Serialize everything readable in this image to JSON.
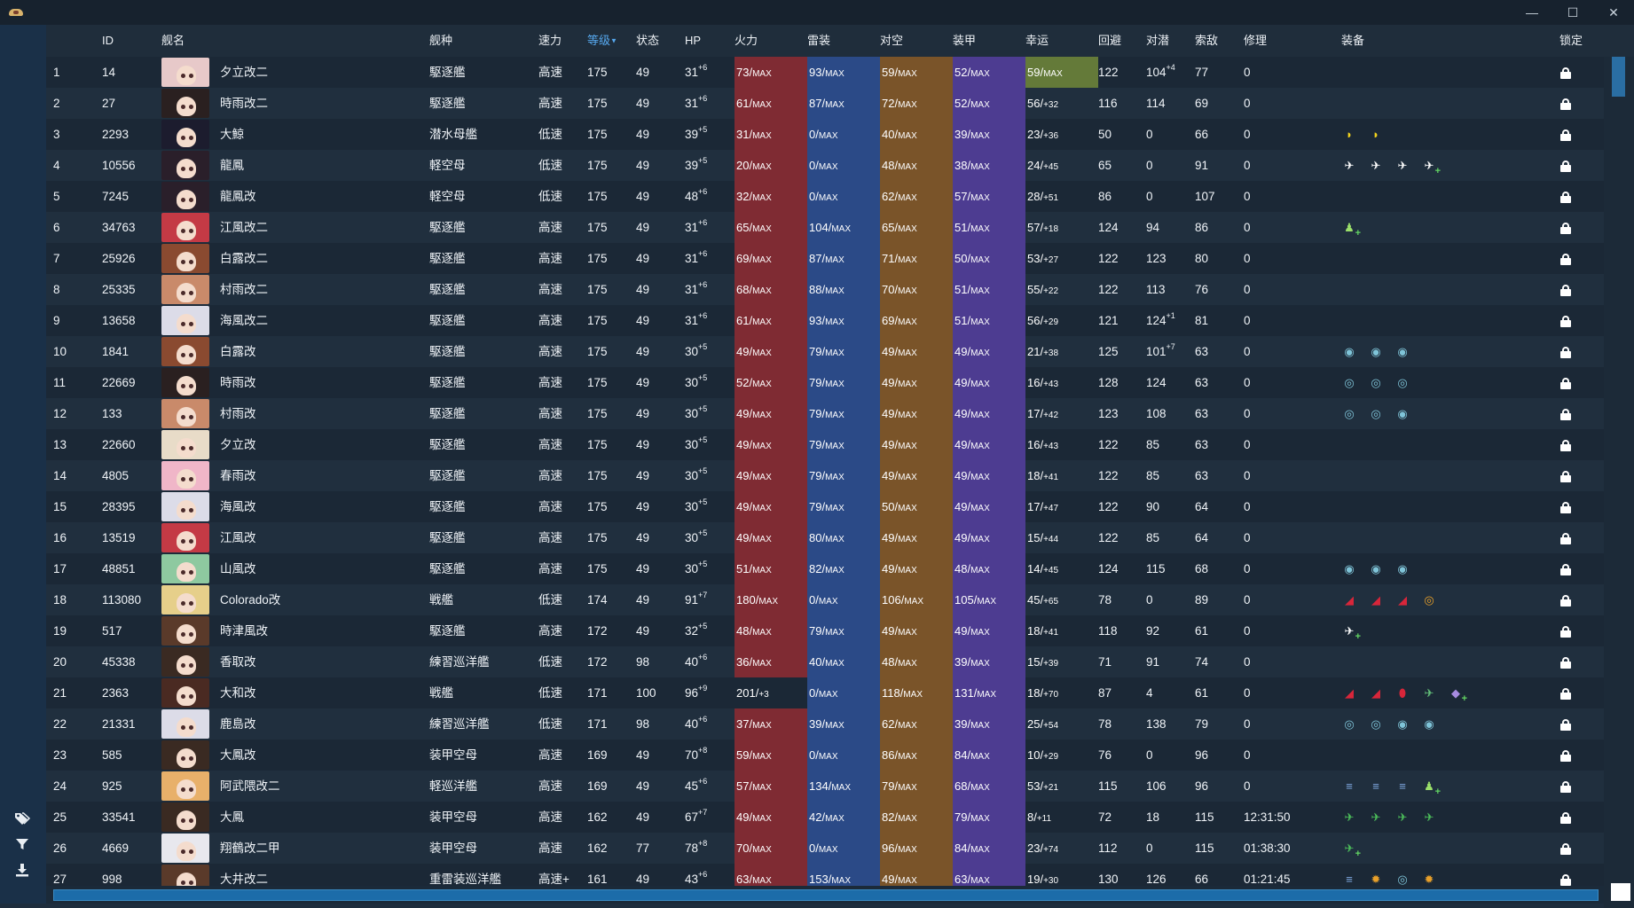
{
  "window": {
    "minimize": "—",
    "maximize": "☐",
    "close": "✕"
  },
  "sidebar": {
    "tags_icon": "tag-icon",
    "filter_icon": "filter-icon",
    "export_icon": "download-icon"
  },
  "columns": {
    "index": "",
    "id": "ID",
    "name": "舰名",
    "type": "舰种",
    "speed": "速力",
    "level": "等级",
    "level_sort": "▼",
    "cond": "状态",
    "hp": "HP",
    "firepower": "火力",
    "torpedo": "雷装",
    "aa": "对空",
    "armor": "装甲",
    "luck": "幸运",
    "evasion": "回避",
    "asw": "对潜",
    "los": "索敌",
    "repair": "修理",
    "equipment": "装备",
    "lock": "锁定"
  },
  "stat_colors": {
    "firepower": "#7f2b33",
    "torpedo": "#2b4a87",
    "aa": "#7a5429",
    "armor": "#4d3c91",
    "luck_max": "#647a39"
  },
  "rows": [
    {
      "idx": "1",
      "id": "14",
      "name": "夕立改二",
      "type": "駆逐艦",
      "speed": "高速",
      "level": "175",
      "cond": "49",
      "hp": "31",
      "hp_sup": "+6",
      "fp": "73/",
      "fp_s": "MAX",
      "tp": "93/",
      "tp_s": "MAX",
      "aa": "59/",
      "aa_s": "MAX",
      "ar": "52/",
      "ar_s": "MAX",
      "lk": "59/",
      "lk_s": "MAX",
      "lk_max": true,
      "ev": "122",
      "asw": "104",
      "asw_sup": "+4",
      "los": "77",
      "rep": "0",
      "hair": "#e7c9c9",
      "equip": []
    },
    {
      "idx": "2",
      "id": "27",
      "name": "時雨改二",
      "type": "駆逐艦",
      "speed": "高速",
      "level": "175",
      "cond": "49",
      "hp": "31",
      "hp_sup": "+6",
      "fp": "61/",
      "fp_s": "MAX",
      "tp": "87/",
      "tp_s": "MAX",
      "aa": "72/",
      "aa_s": "MAX",
      "ar": "52/",
      "ar_s": "MAX",
      "lk": "56/",
      "lk_s": "+32",
      "ev": "116",
      "asw": "114",
      "los": "69",
      "rep": "0",
      "hair": "#2a2020",
      "equip": []
    },
    {
      "idx": "3",
      "id": "2293",
      "name": "大鯨",
      "type": "潜水母艦",
      "speed": "低速",
      "level": "175",
      "cond": "49",
      "hp": "39",
      "hp_sup": "+5",
      "fp": "31/",
      "fp_s": "MAX",
      "tp": "0/",
      "tp_s": "MAX",
      "aa": "40/",
      "aa_s": "MAX",
      "ar": "39/",
      "ar_s": "MAX",
      "lk": "23/",
      "lk_s": "+36",
      "ev": "50",
      "asw": "0",
      "los": "66",
      "rep": "0",
      "hair": "#1c1c2e",
      "equip": [
        {
          "n": "searchlight-icon",
          "g": "◗",
          "c": "#f2d21d"
        },
        {
          "n": "searchlight-icon",
          "g": "◗",
          "c": "#f2d21d"
        }
      ]
    },
    {
      "idx": "4",
      "id": "10556",
      "name": "龍鳳",
      "type": "軽空母",
      "speed": "低速",
      "level": "175",
      "cond": "49",
      "hp": "39",
      "hp_sup": "+5",
      "fp": "20/",
      "fp_s": "MAX",
      "tp": "0/",
      "tp_s": "MAX",
      "aa": "48/",
      "aa_s": "MAX",
      "ar": "38/",
      "ar_s": "MAX",
      "lk": "24/",
      "lk_s": "+45",
      "ev": "65",
      "asw": "0",
      "los": "91",
      "rep": "0",
      "hair": "#2a1f2a",
      "equip": [
        {
          "n": "fighter-plane-icon",
          "g": "✈",
          "c": "#ffffff"
        },
        {
          "n": "fighter-plane-icon",
          "g": "✈",
          "c": "#ffffff"
        },
        {
          "n": "fighter-plane-icon",
          "g": "✈",
          "c": "#ffffff"
        },
        {
          "n": "fighter-plane-icon",
          "g": "✈",
          "c": "#ffffff",
          "p": true
        }
      ]
    },
    {
      "idx": "5",
      "id": "7245",
      "name": "龍鳳改",
      "type": "軽空母",
      "speed": "低速",
      "level": "175",
      "cond": "49",
      "hp": "48",
      "hp_sup": "+6",
      "fp": "32/",
      "fp_s": "MAX",
      "tp": "0/",
      "tp_s": "MAX",
      "aa": "62/",
      "aa_s": "MAX",
      "ar": "57/",
      "ar_s": "MAX",
      "lk": "28/",
      "lk_s": "+51",
      "ev": "86",
      "asw": "0",
      "los": "107",
      "rep": "0",
      "hair": "#2a1f2a",
      "equip": []
    },
    {
      "idx": "6",
      "id": "34763",
      "name": "江風改二",
      "type": "駆逐艦",
      "speed": "高速",
      "level": "175",
      "cond": "49",
      "hp": "31",
      "hp_sup": "+6",
      "fp": "65/",
      "fp_s": "MAX",
      "tp": "104/",
      "tp_s": "MAX",
      "aa": "65/",
      "aa_s": "MAX",
      "ar": "51/",
      "ar_s": "MAX",
      "lk": "57/",
      "lk_s": "+18",
      "ev": "124",
      "asw": "94",
      "los": "86",
      "rep": "0",
      "hair": "#c43a45",
      "equip": [
        {
          "n": "lookout-personnel-icon",
          "g": "♟",
          "c": "#9be06a",
          "p": true
        }
      ]
    },
    {
      "idx": "7",
      "id": "25926",
      "name": "白露改二",
      "type": "駆逐艦",
      "speed": "高速",
      "level": "175",
      "cond": "49",
      "hp": "31",
      "hp_sup": "+6",
      "fp": "69/",
      "fp_s": "MAX",
      "tp": "87/",
      "tp_s": "MAX",
      "aa": "71/",
      "aa_s": "MAX",
      "ar": "50/",
      "ar_s": "MAX",
      "lk": "53/",
      "lk_s": "+27",
      "ev": "122",
      "asw": "123",
      "los": "80",
      "rep": "0",
      "hair": "#8a4a30",
      "equip": []
    },
    {
      "idx": "8",
      "id": "25335",
      "name": "村雨改二",
      "type": "駆逐艦",
      "speed": "高速",
      "level": "175",
      "cond": "49",
      "hp": "31",
      "hp_sup": "+6",
      "fp": "68/",
      "fp_s": "MAX",
      "tp": "88/",
      "tp_s": "MAX",
      "aa": "70/",
      "aa_s": "MAX",
      "ar": "51/",
      "ar_s": "MAX",
      "lk": "55/",
      "lk_s": "+22",
      "ev": "122",
      "asw": "113",
      "los": "76",
      "rep": "0",
      "hair": "#c98a6a",
      "equip": []
    },
    {
      "idx": "9",
      "id": "13658",
      "name": "海風改二",
      "type": "駆逐艦",
      "speed": "高速",
      "level": "175",
      "cond": "49",
      "hp": "31",
      "hp_sup": "+6",
      "fp": "61/",
      "fp_s": "MAX",
      "tp": "93/",
      "tp_s": "MAX",
      "aa": "69/",
      "aa_s": "MAX",
      "ar": "51/",
      "ar_s": "MAX",
      "lk": "56/",
      "lk_s": "+29",
      "ev": "121",
      "asw": "124",
      "asw_sup": "+1",
      "los": "81",
      "rep": "0",
      "hair": "#dcdce8",
      "equip": []
    },
    {
      "idx": "10",
      "id": "1841",
      "name": "白露改",
      "type": "駆逐艦",
      "speed": "高速",
      "level": "175",
      "cond": "49",
      "hp": "30",
      "hp_sup": "+5",
      "fp": "49/",
      "fp_s": "MAX",
      "tp": "79/",
      "tp_s": "MAX",
      "aa": "49/",
      "aa_s": "MAX",
      "ar": "49/",
      "ar_s": "MAX",
      "lk": "21/",
      "lk_s": "+38",
      "ev": "125",
      "asw": "101",
      "asw_sup": "+7",
      "los": "63",
      "rep": "0",
      "hair": "#8a4a30",
      "equip": [
        {
          "n": "depth-charge-icon",
          "g": "◉",
          "c": "#7fc4d8"
        },
        {
          "n": "depth-charge-icon",
          "g": "◉",
          "c": "#7fc4d8"
        },
        {
          "n": "depth-charge-icon",
          "g": "◉",
          "c": "#7fc4d8"
        }
      ]
    },
    {
      "idx": "11",
      "id": "22669",
      "name": "時雨改",
      "type": "駆逐艦",
      "speed": "高速",
      "level": "175",
      "cond": "49",
      "hp": "30",
      "hp_sup": "+5",
      "fp": "52/",
      "fp_s": "MAX",
      "tp": "79/",
      "tp_s": "MAX",
      "aa": "49/",
      "aa_s": "MAX",
      "ar": "49/",
      "ar_s": "MAX",
      "lk": "16/",
      "lk_s": "+43",
      "ev": "128",
      "asw": "124",
      "los": "63",
      "rep": "0",
      "hair": "#2a2020",
      "equip": [
        {
          "n": "sonar-icon",
          "g": "◎",
          "c": "#7fc4d8"
        },
        {
          "n": "sonar-icon",
          "g": "◎",
          "c": "#7fc4d8"
        },
        {
          "n": "sonar-icon",
          "g": "◎",
          "c": "#7fc4d8"
        }
      ]
    },
    {
      "idx": "12",
      "id": "133",
      "name": "村雨改",
      "type": "駆逐艦",
      "speed": "高速",
      "level": "175",
      "cond": "49",
      "hp": "30",
      "hp_sup": "+5",
      "fp": "49/",
      "fp_s": "MAX",
      "tp": "79/",
      "tp_s": "MAX",
      "aa": "49/",
      "aa_s": "MAX",
      "ar": "49/",
      "ar_s": "MAX",
      "lk": "17/",
      "lk_s": "+42",
      "ev": "123",
      "asw": "108",
      "los": "63",
      "rep": "0",
      "hair": "#c98a6a",
      "equip": [
        {
          "n": "sonar-icon",
          "g": "◎",
          "c": "#7fc4d8"
        },
        {
          "n": "sonar-icon",
          "g": "◎",
          "c": "#7fc4d8"
        },
        {
          "n": "depth-charge-icon",
          "g": "◉",
          "c": "#7fc4d8"
        }
      ]
    },
    {
      "idx": "13",
      "id": "22660",
      "name": "夕立改",
      "type": "駆逐艦",
      "speed": "高速",
      "level": "175",
      "cond": "49",
      "hp": "30",
      "hp_sup": "+5",
      "fp": "49/",
      "fp_s": "MAX",
      "tp": "79/",
      "tp_s": "MAX",
      "aa": "49/",
      "aa_s": "MAX",
      "ar": "49/",
      "ar_s": "MAX",
      "lk": "16/",
      "lk_s": "+43",
      "ev": "122",
      "asw": "85",
      "los": "63",
      "rep": "0",
      "hair": "#e8dcc8",
      "equip": []
    },
    {
      "idx": "14",
      "id": "4805",
      "name": "春雨改",
      "type": "駆逐艦",
      "speed": "高速",
      "level": "175",
      "cond": "49",
      "hp": "30",
      "hp_sup": "+5",
      "fp": "49/",
      "fp_s": "MAX",
      "tp": "79/",
      "tp_s": "MAX",
      "aa": "49/",
      "aa_s": "MAX",
      "ar": "49/",
      "ar_s": "MAX",
      "lk": "18/",
      "lk_s": "+41",
      "ev": "122",
      "asw": "85",
      "los": "63",
      "rep": "0",
      "hair": "#f0b6c8",
      "equip": []
    },
    {
      "idx": "15",
      "id": "28395",
      "name": "海風改",
      "type": "駆逐艦",
      "speed": "高速",
      "level": "175",
      "cond": "49",
      "hp": "30",
      "hp_sup": "+5",
      "fp": "49/",
      "fp_s": "MAX",
      "tp": "79/",
      "tp_s": "MAX",
      "aa": "50/",
      "aa_s": "MAX",
      "ar": "49/",
      "ar_s": "MAX",
      "lk": "17/",
      "lk_s": "+47",
      "ev": "122",
      "asw": "90",
      "los": "64",
      "rep": "0",
      "hair": "#dcdce8",
      "equip": []
    },
    {
      "idx": "16",
      "id": "13519",
      "name": "江風改",
      "type": "駆逐艦",
      "speed": "高速",
      "level": "175",
      "cond": "49",
      "hp": "30",
      "hp_sup": "+5",
      "fp": "49/",
      "fp_s": "MAX",
      "tp": "80/",
      "tp_s": "MAX",
      "aa": "49/",
      "aa_s": "MAX",
      "ar": "49/",
      "ar_s": "MAX",
      "lk": "15/",
      "lk_s": "+44",
      "ev": "122",
      "asw": "85",
      "los": "64",
      "rep": "0",
      "hair": "#c43a45",
      "equip": []
    },
    {
      "idx": "17",
      "id": "48851",
      "name": "山風改",
      "type": "駆逐艦",
      "speed": "高速",
      "level": "175",
      "cond": "49",
      "hp": "30",
      "hp_sup": "+5",
      "fp": "51/",
      "fp_s": "MAX",
      "tp": "82/",
      "tp_s": "MAX",
      "aa": "49/",
      "aa_s": "MAX",
      "ar": "48/",
      "ar_s": "MAX",
      "lk": "14/",
      "lk_s": "+45",
      "ev": "124",
      "asw": "115",
      "los": "68",
      "rep": "0",
      "hair": "#8ec9a0",
      "equip": [
        {
          "n": "depth-charge-icon",
          "g": "◉",
          "c": "#7fc4d8"
        },
        {
          "n": "depth-charge-icon",
          "g": "◉",
          "c": "#7fc4d8"
        },
        {
          "n": "depth-charge-icon",
          "g": "◉",
          "c": "#7fc4d8"
        }
      ]
    },
    {
      "idx": "18",
      "id": "113080",
      "name": "Colorado改",
      "type": "戦艦",
      "speed": "低速",
      "level": "174",
      "cond": "49",
      "hp": "91",
      "hp_sup": "+7",
      "fp": "180/",
      "fp_s": "MAX",
      "tp": "0/",
      "tp_s": "MAX",
      "aa": "106/",
      "aa_s": "MAX",
      "ar": "105/",
      "ar_s": "MAX",
      "lk": "45/",
      "lk_s": "+65",
      "ev": "78",
      "asw": "0",
      "los": "89",
      "rep": "0",
      "hair": "#e6cf8a",
      "equip": [
        {
          "n": "large-gun-icon",
          "g": "◢",
          "c": "#d8263a"
        },
        {
          "n": "large-gun-icon",
          "g": "◢",
          "c": "#d8263a"
        },
        {
          "n": "large-gun-icon",
          "g": "◢",
          "c": "#d8263a"
        },
        {
          "n": "radar-icon",
          "g": "◎",
          "c": "#e8a02a"
        }
      ]
    },
    {
      "idx": "19",
      "id": "517",
      "name": "時津風改",
      "type": "駆逐艦",
      "speed": "高速",
      "level": "172",
      "cond": "49",
      "hp": "32",
      "hp_sup": "+5",
      "fp": "48/",
      "fp_s": "MAX",
      "tp": "79/",
      "tp_s": "MAX",
      "aa": "49/",
      "aa_s": "MAX",
      "ar": "49/",
      "ar_s": "MAX",
      "lk": "18/",
      "lk_s": "+41",
      "ev": "118",
      "asw": "92",
      "los": "61",
      "rep": "0",
      "hair": "#5a3a2a",
      "equip": [
        {
          "n": "fighter-plane-icon",
          "g": "✈",
          "c": "#ffffff",
          "p": true
        }
      ]
    },
    {
      "idx": "20",
      "id": "45338",
      "name": "香取改",
      "type": "練習巡洋艦",
      "speed": "低速",
      "level": "172",
      "cond": "98",
      "hp": "40",
      "hp_sup": "+6",
      "fp": "36/",
      "fp_s": "MAX",
      "tp": "40/",
      "tp_s": "MAX",
      "aa": "48/",
      "aa_s": "MAX",
      "ar": "39/",
      "ar_s": "MAX",
      "lk": "15/",
      "lk_s": "+39",
      "ev": "71",
      "asw": "91",
      "los": "74",
      "rep": "0",
      "hair": "#3a2a22",
      "equip": []
    },
    {
      "idx": "21",
      "id": "2363",
      "name": "大和改",
      "type": "戦艦",
      "speed": "低速",
      "level": "171",
      "cond": "100",
      "hp": "96",
      "hp_sup": "+9",
      "fp": "201/",
      "fp_s": "+3",
      "fp_notmax": true,
      "tp": "0/",
      "tp_s": "MAX",
      "aa": "118/",
      "aa_s": "MAX",
      "ar": "131/",
      "ar_s": "MAX",
      "lk": "18/",
      "lk_s": "+70",
      "ev": "87",
      "asw": "4",
      "los": "61",
      "rep": "0",
      "hair": "#4a2a22",
      "equip": [
        {
          "n": "large-gun-icon",
          "g": "◢",
          "c": "#d8263a"
        },
        {
          "n": "large-gun-icon",
          "g": "◢",
          "c": "#d8263a"
        },
        {
          "n": "ap-shell-icon",
          "g": "⬮",
          "c": "#d8263a"
        },
        {
          "n": "seaplane-icon",
          "g": "✈",
          "c": "#63c07a"
        },
        {
          "n": "medal-icon",
          "g": "◆",
          "c": "#a78be0",
          "p": true
        }
      ]
    },
    {
      "idx": "22",
      "id": "21331",
      "name": "鹿島改",
      "type": "練習巡洋艦",
      "speed": "低速",
      "level": "171",
      "cond": "98",
      "hp": "40",
      "hp_sup": "+6",
      "fp": "37/",
      "fp_s": "MAX",
      "tp": "39/",
      "tp_s": "MAX",
      "aa": "62/",
      "aa_s": "MAX",
      "ar": "39/",
      "ar_s": "MAX",
      "lk": "25/",
      "lk_s": "+54",
      "ev": "78",
      "asw": "138",
      "los": "79",
      "rep": "0",
      "hair": "#dcdce8",
      "equip": [
        {
          "n": "sonar-icon",
          "g": "◎",
          "c": "#7fc4d8"
        },
        {
          "n": "sonar-icon",
          "g": "◎",
          "c": "#7fc4d8"
        },
        {
          "n": "depth-charge-icon",
          "g": "◉",
          "c": "#7fc4d8"
        },
        {
          "n": "depth-charge-icon",
          "g": "◉",
          "c": "#7fc4d8"
        }
      ]
    },
    {
      "idx": "23",
      "id": "585",
      "name": "大鳳改",
      "type": "装甲空母",
      "speed": "高速",
      "level": "169",
      "cond": "49",
      "hp": "70",
      "hp_sup": "+8",
      "fp": "59/",
      "fp_s": "MAX",
      "tp": "0/",
      "tp_s": "MAX",
      "aa": "86/",
      "aa_s": "MAX",
      "ar": "84/",
      "ar_s": "MAX",
      "lk": "10/",
      "lk_s": "+29",
      "ev": "76",
      "asw": "0",
      "los": "96",
      "rep": "0",
      "hair": "#3a2a22",
      "equip": []
    },
    {
      "idx": "24",
      "id": "925",
      "name": "阿武隈改二",
      "type": "軽巡洋艦",
      "speed": "高速",
      "level": "169",
      "cond": "49",
      "hp": "45",
      "hp_sup": "+6",
      "fp": "57/",
      "fp_s": "MAX",
      "tp": "134/",
      "tp_s": "MAX",
      "aa": "79/",
      "aa_s": "MAX",
      "ar": "68/",
      "ar_s": "MAX",
      "lk": "53/",
      "lk_s": "+21",
      "ev": "115",
      "asw": "106",
      "los": "96",
      "rep": "0",
      "hair": "#e8b06a",
      "equip": [
        {
          "n": "torpedo-icon",
          "g": "≡",
          "c": "#7fa8e0"
        },
        {
          "n": "torpedo-icon",
          "g": "≡",
          "c": "#7fa8e0"
        },
        {
          "n": "torpedo-icon",
          "g": "≡",
          "c": "#7fa8e0"
        },
        {
          "n": "lookout-personnel-icon",
          "g": "♟",
          "c": "#9be06a",
          "p": true
        }
      ]
    },
    {
      "idx": "25",
      "id": "33541",
      "name": "大鳳",
      "type": "装甲空母",
      "speed": "高速",
      "level": "162",
      "cond": "49",
      "hp": "67",
      "hp_sup": "+7",
      "fp": "49/",
      "fp_s": "MAX",
      "tp": "42/",
      "tp_s": "MAX",
      "aa": "82/",
      "aa_s": "MAX",
      "ar": "79/",
      "ar_s": "MAX",
      "lk": "8/",
      "lk_s": "+11",
      "ev": "72",
      "asw": "18",
      "los": "115",
      "rep": "12:31:50",
      "hair": "#3a2a22",
      "equip": [
        {
          "n": "fighter-plane-icon",
          "g": "✈",
          "c": "#4cbf5a"
        },
        {
          "n": "bomber-plane-icon",
          "g": "✈",
          "c": "#4cbf5a"
        },
        {
          "n": "bomber-plane-icon",
          "g": "✈",
          "c": "#4cbf5a"
        },
        {
          "n": "attacker-plane-icon",
          "g": "✈",
          "c": "#4cbf5a"
        }
      ]
    },
    {
      "idx": "26",
      "id": "4669",
      "name": "翔鶴改二甲",
      "type": "装甲空母",
      "speed": "高速",
      "level": "162",
      "cond": "77",
      "hp": "78",
      "hp_sup": "+8",
      "fp": "70/",
      "fp_s": "MAX",
      "tp": "0/",
      "tp_s": "MAX",
      "aa": "96/",
      "aa_s": "MAX",
      "ar": "84/",
      "ar_s": "MAX",
      "lk": "23/",
      "lk_s": "+74",
      "ev": "112",
      "asw": "0",
      "los": "115",
      "rep": "01:38:30",
      "hair": "#e8e8ee",
      "equip": [
        {
          "n": "fighter-plane-icon",
          "g": "✈",
          "c": "#4cbf5a",
          "p": true
        }
      ]
    },
    {
      "idx": "27",
      "id": "998",
      "name": "大井改二",
      "type": "重雷装巡洋艦",
      "speed": "高速+",
      "level": "161",
      "cond": "49",
      "hp": "43",
      "hp_sup": "+6",
      "fp": "63/",
      "fp_s": "MAX",
      "tp": "153/",
      "tp_s": "MAX",
      "aa": "49/",
      "aa_s": "MAX",
      "ar": "63/",
      "ar_s": "MAX",
      "lk": "19/",
      "lk_s": "+30",
      "ev": "130",
      "asw": "126",
      "los": "66",
      "rep": "01:21:45",
      "hair": "#5a3a2a",
      "equip": [
        {
          "n": "torpedo-icon",
          "g": "≡",
          "c": "#7fa8e0"
        },
        {
          "n": "sun-gear-icon",
          "g": "✹",
          "c": "#e8a02a"
        },
        {
          "n": "sonar-icon",
          "g": "◎",
          "c": "#7fc4d8"
        },
        {
          "n": "sun-gear-icon",
          "g": "✹",
          "c": "#e8a02a"
        }
      ]
    }
  ]
}
